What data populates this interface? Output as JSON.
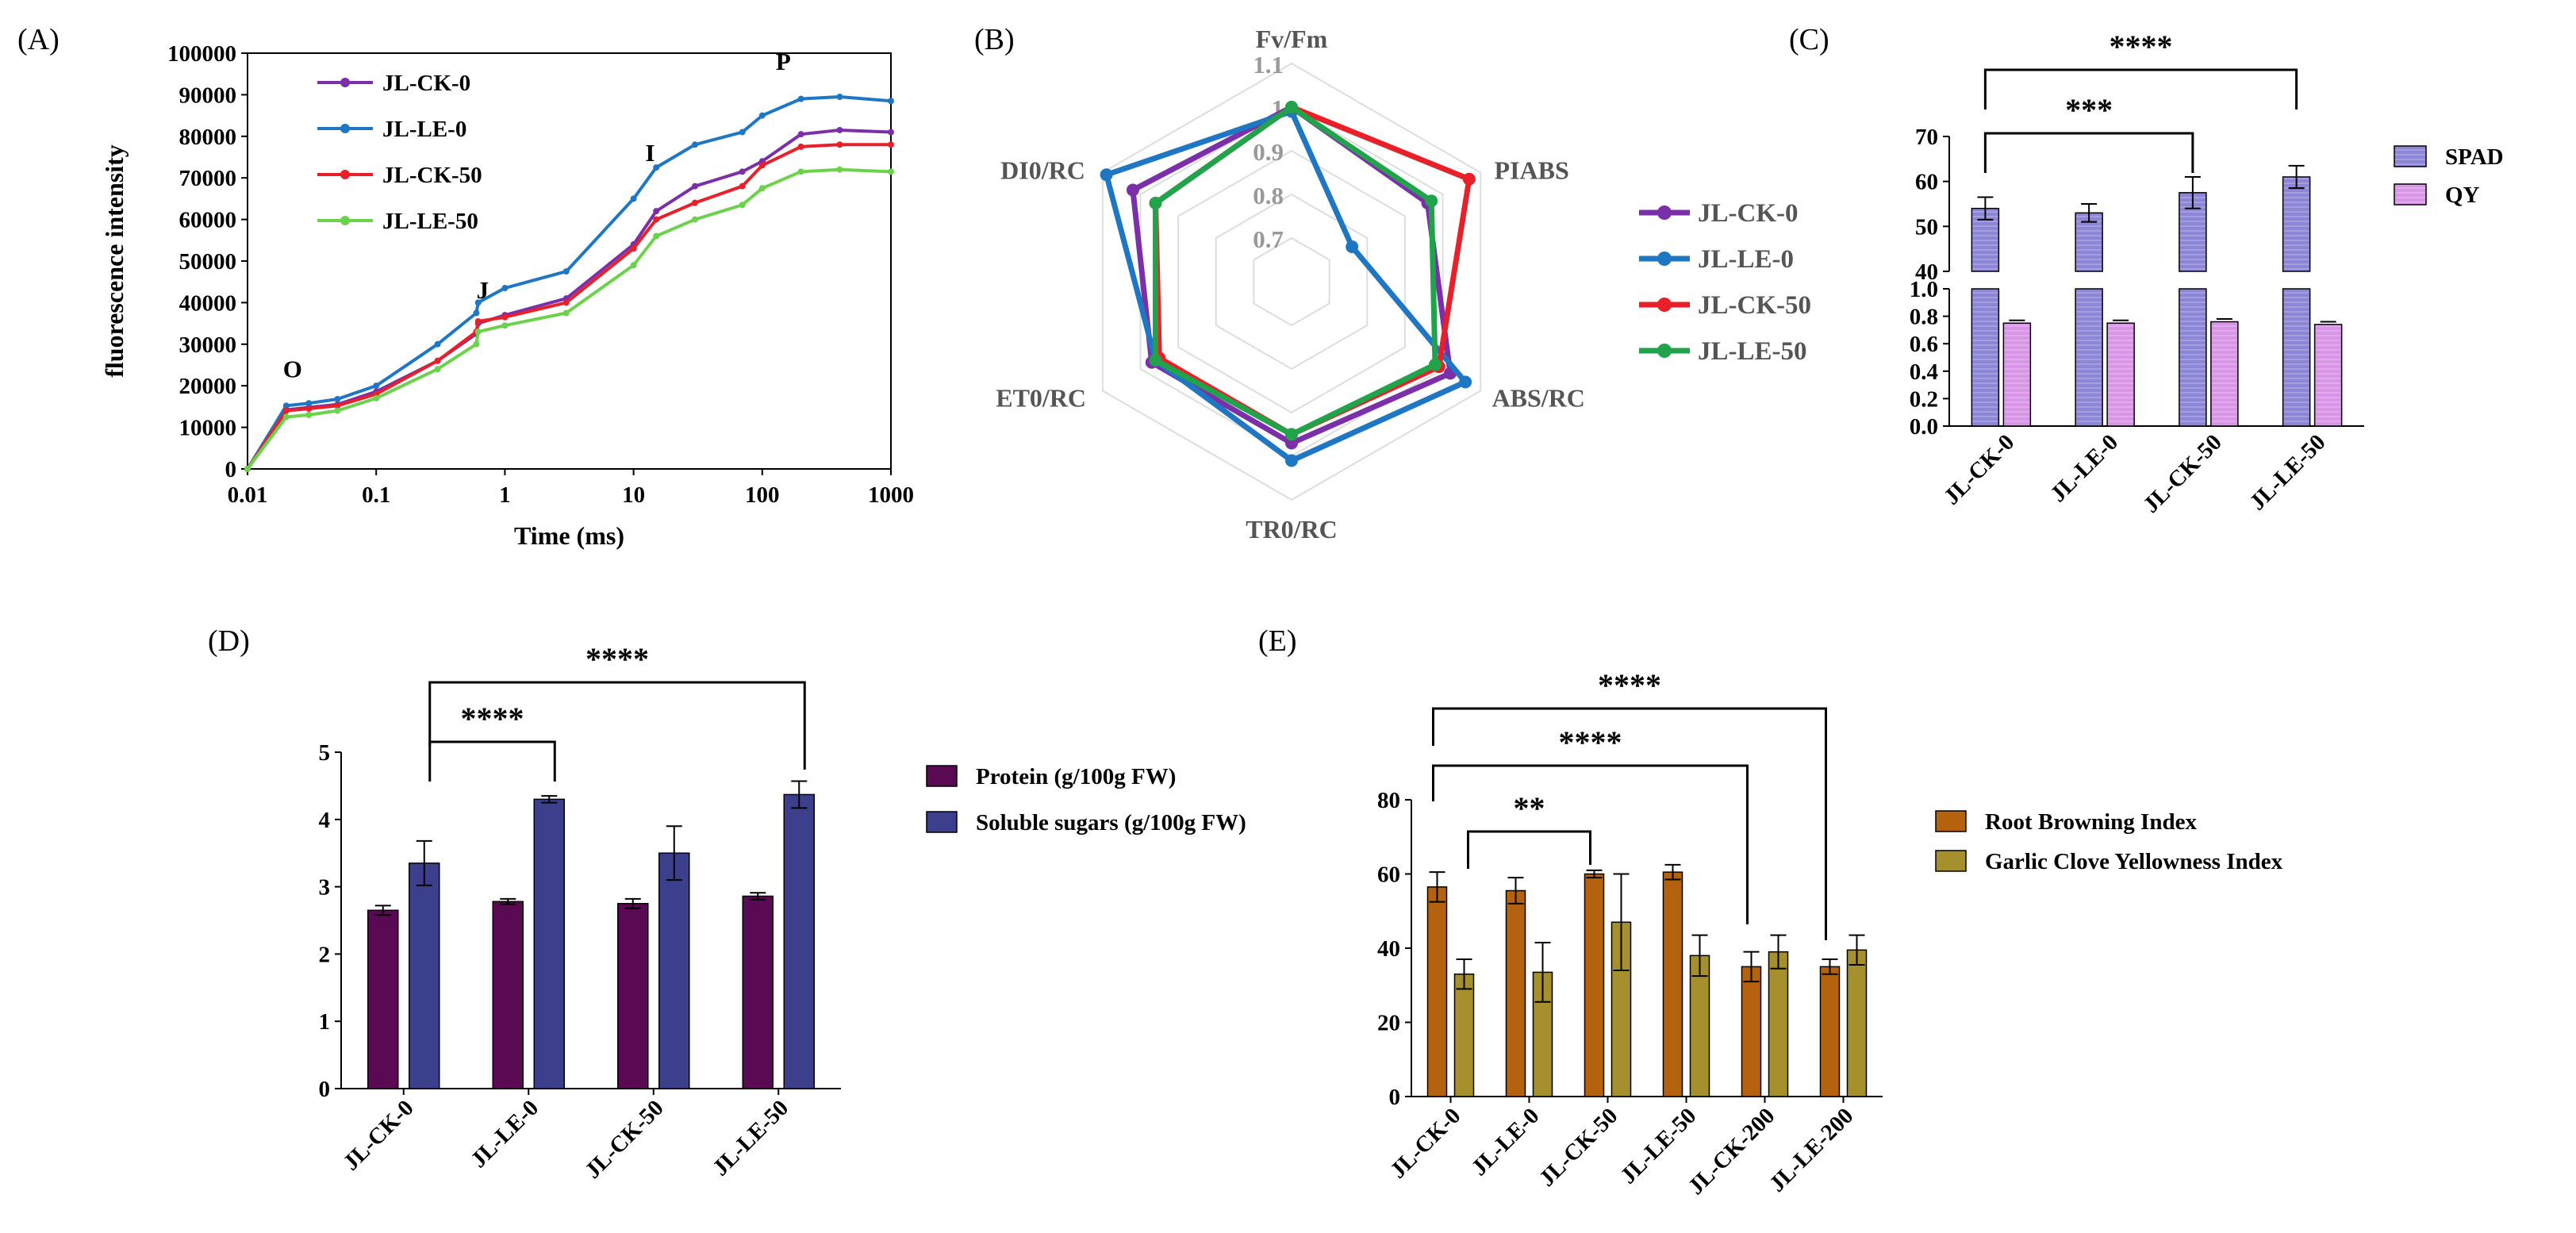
{
  "chart_data": [
    {
      "panel": "(A)",
      "type": "line",
      "xlabel": "Time (ms)",
      "ylabel": "fluorescence intensity",
      "xscale": "log",
      "xlim": [
        0.01,
        1000
      ],
      "ylim": [
        0,
        100000
      ],
      "xticks": [
        "0.01",
        "0.1",
        "1",
        "10",
        "100",
        "1000"
      ],
      "yticks": [
        "0",
        "10000",
        "20000",
        "30000",
        "40000",
        "50000",
        "60000",
        "70000",
        "80000",
        "90000",
        "100000"
      ],
      "x": [
        0.01,
        0.02,
        0.03,
        0.05,
        0.1,
        0.3,
        0.6,
        0.62,
        1,
        3,
        10,
        15,
        30,
        70,
        100,
        200,
        400,
        1000
      ],
      "series": [
        {
          "name": "JL-CK-0",
          "color": "#7B2FA8",
          "values": [
            0,
            14200,
            14800,
            15500,
            18600,
            26000,
            32500,
            35000,
            37000,
            41000,
            54000,
            62000,
            68000,
            71500,
            74000,
            80500,
            81500,
            81000
          ]
        },
        {
          "name": "JL-LE-0",
          "color": "#1F77C4",
          "values": [
            0,
            15200,
            15800,
            16800,
            20000,
            30000,
            37500,
            40000,
            43500,
            47500,
            65000,
            72500,
            78000,
            81000,
            85000,
            89000,
            89500,
            88500
          ]
        },
        {
          "name": "JL-CK-50",
          "color": "#E8202A",
          "values": [
            0,
            14000,
            14500,
            15200,
            18000,
            26000,
            33000,
            35500,
            36500,
            40000,
            53000,
            60000,
            64000,
            68000,
            73000,
            77500,
            78000,
            78000
          ]
        },
        {
          "name": "JL-LE-50",
          "color": "#6CD24C",
          "values": [
            0,
            12500,
            13000,
            14000,
            17000,
            24000,
            30000,
            33000,
            34500,
            37500,
            49000,
            56000,
            60000,
            63500,
            67500,
            71500,
            72000,
            71500
          ]
        }
      ],
      "annotations": [
        "O",
        "J",
        "I",
        "P"
      ],
      "legend_position": "top-left"
    },
    {
      "panel": "(B)",
      "type": "radar",
      "axes": [
        "Fv/Fm",
        "PIABS",
        "ABS/RC",
        "TR0/RC",
        "ET0/RC",
        "DI0/RC"
      ],
      "rings": [
        "0.7",
        "0.8",
        "0.9",
        "1",
        "1.1"
      ],
      "rlim": [
        0.6,
        1.1
      ],
      "series": [
        {
          "name": "JL-CK-0",
          "color": "#7B2FA8",
          "values": [
            1.0,
            0.96,
            1.02,
            0.97,
            0.97,
            1.02
          ]
        },
        {
          "name": "JL-LE-0",
          "color": "#1F77C4",
          "values": [
            0.99,
            0.76,
            1.06,
            1.01,
            0.96,
            1.09
          ]
        },
        {
          "name": "JL-CK-50",
          "color": "#E8202A",
          "values": [
            1.0,
            1.07,
            0.99,
            0.95,
            0.95,
            0.96
          ]
        },
        {
          "name": "JL-LE-50",
          "color": "#20A34A",
          "values": [
            1.0,
            0.97,
            0.98,
            0.95,
            0.96,
            0.96
          ]
        }
      ],
      "legend_position": "right"
    },
    {
      "panel": "(C)",
      "type": "bar",
      "categories": [
        "JL-CK-0",
        "JL-LE-0",
        "JL-CK-50",
        "JL-LE-50"
      ],
      "series": [
        {
          "name": "SPAD",
          "color": "#8D86D6",
          "values": [
            54,
            53,
            57.5,
            61
          ],
          "errors": [
            2.5,
            2,
            3.5,
            2.5
          ]
        },
        {
          "name": "QY",
          "color": "#D996E6",
          "values": [
            0.75,
            0.75,
            0.76,
            0.74
          ],
          "errors": [
            0.02,
            0.02,
            0.02,
            0.02
          ]
        }
      ],
      "split_axis": {
        "top_range": [
          40,
          70
        ],
        "top_ticks": [
          "40",
          "50",
          "60",
          "70"
        ],
        "bottom_range": [
          0,
          1.0
        ],
        "bottom_ticks": [
          "0.0",
          "0.2",
          "0.4",
          "0.6",
          "0.8",
          "1.0"
        ]
      },
      "significance": [
        {
          "from": "JL-CK-0",
          "to": "JL-CK-50",
          "label": "***"
        },
        {
          "from": "JL-CK-0",
          "to": "JL-LE-50",
          "label": "****"
        }
      ],
      "legend_position": "top-right"
    },
    {
      "panel": "(D)",
      "type": "bar",
      "categories": [
        "JL-CK-0",
        "JL-LE-0",
        "JL-CK-50",
        "JL-LE-50"
      ],
      "ylim": [
        0,
        5
      ],
      "yticks": [
        "0",
        "1",
        "2",
        "3",
        "4",
        "5"
      ],
      "series": [
        {
          "name": "Protein (g/100g FW)",
          "color": "#5A0A52",
          "values": [
            2.65,
            2.78,
            2.75,
            2.86
          ],
          "errors": [
            0.07,
            0.04,
            0.07,
            0.05
          ]
        },
        {
          "name": "Soluble sugars (g/100g FW)",
          "color": "#3C3F8C",
          "values": [
            3.35,
            4.3,
            3.5,
            4.37
          ],
          "errors": [
            0.33,
            0.05,
            0.4,
            0.2
          ]
        }
      ],
      "significance": [
        {
          "from": "JL-LE-0",
          "to": "JL-LE-0",
          "label": "****"
        },
        {
          "from": "JL-LE-0",
          "to": "JL-LE-50",
          "label": "****"
        }
      ],
      "legend_position": "right"
    },
    {
      "panel": "(E)",
      "type": "bar",
      "categories": [
        "JL-CK-0",
        "JL-LE-0",
        "JL-CK-50",
        "JL-LE-50",
        "JL-CK-200",
        "JL-LE-200"
      ],
      "ylim": [
        0,
        80
      ],
      "yticks": [
        "0",
        "20",
        "40",
        "60",
        "80"
      ],
      "series": [
        {
          "name": "Root Browning Index",
          "color": "#B5620E",
          "values": [
            56.5,
            55.5,
            60,
            60.5,
            35,
            35
          ],
          "errors": [
            4,
            3.5,
            1,
            2,
            4,
            2
          ]
        },
        {
          "name": "Garlic Clove Yellowness Index",
          "color": "#A6902E",
          "values": [
            33,
            33.5,
            47,
            38,
            39,
            39.5
          ],
          "errors": [
            4,
            8,
            13,
            5.5,
            4.5,
            4
          ]
        }
      ],
      "significance": [
        {
          "from": "JL-CK-0",
          "to": "JL-CK-50",
          "label": "**"
        },
        {
          "from": "JL-CK-0",
          "to": "JL-CK-200",
          "label": "****"
        },
        {
          "from": "JL-CK-0",
          "to": "JL-LE-200",
          "label": "****"
        }
      ],
      "legend_position": "right"
    }
  ]
}
